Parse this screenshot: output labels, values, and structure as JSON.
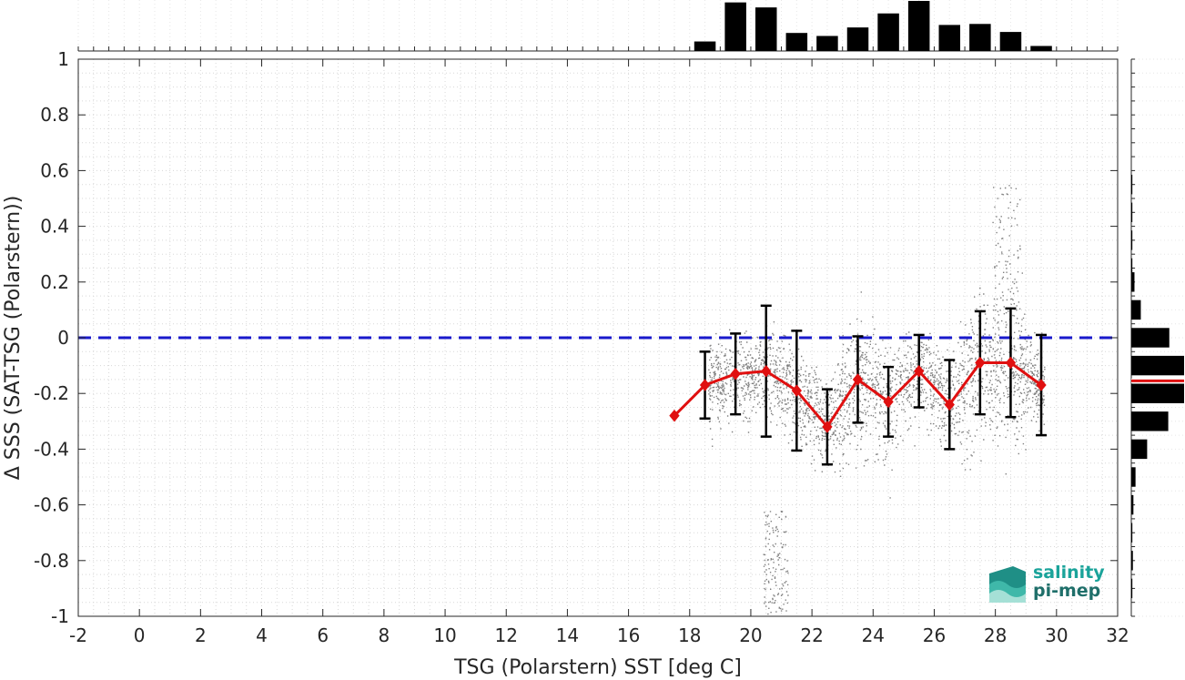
{
  "chart_data": {
    "type": "scatter",
    "title": "",
    "xlabel": "TSG (Polarstern) SST [deg C]",
    "ylabel": "Δ SSS (SAT-TSG (Polarstern))",
    "xlim": [
      -2,
      32
    ],
    "ylim": [
      -1,
      1
    ],
    "xticks": [
      -2,
      0,
      2,
      4,
      6,
      8,
      10,
      12,
      14,
      16,
      18,
      20,
      22,
      24,
      26,
      28,
      30,
      32
    ],
    "yticks": [
      -1,
      -0.8,
      -0.6,
      -0.4,
      -0.2,
      0,
      0.2,
      0.4,
      0.6,
      0.8,
      1
    ],
    "xtick_labels": [
      "-2",
      "0",
      "2",
      "4",
      "6",
      "8",
      "10",
      "12",
      "14",
      "16",
      "18",
      "20",
      "22",
      "24",
      "26",
      "28",
      "30",
      "32"
    ],
    "ytick_labels": [
      "-1",
      "-0.8",
      "-0.6",
      "-0.4",
      "-0.2",
      "0",
      "0.2",
      "0.4",
      "0.6",
      "0.8",
      "1"
    ],
    "grid": true,
    "zero_line": {
      "y": 0,
      "color": "#1a1acc",
      "style": "dashed"
    },
    "scatter_color": "#808080",
    "binned_series": {
      "color": "#e01010",
      "x": [
        17.5,
        18.5,
        19.5,
        20.5,
        21.5,
        22.5,
        23.5,
        24.5,
        25.5,
        26.5,
        27.5,
        28.5,
        29.5
      ],
      "mean": [
        -0.28,
        -0.17,
        -0.13,
        -0.12,
        -0.19,
        -0.32,
        -0.15,
        -0.23,
        -0.12,
        -0.24,
        -0.09,
        -0.09,
        -0.17
      ],
      "std": [
        0.0,
        0.12,
        0.145,
        0.235,
        0.215,
        0.135,
        0.155,
        0.125,
        0.13,
        0.16,
        0.185,
        0.195,
        0.18
      ]
    },
    "sst_histogram": {
      "bin_centers": [
        18.5,
        19.5,
        20.5,
        21.5,
        22.5,
        23.5,
        24.5,
        25.5,
        26.5,
        27.5,
        28.5,
        29.5
      ],
      "heights": [
        0.19,
        0.97,
        0.87,
        0.36,
        0.3,
        0.47,
        0.75,
        1.0,
        0.52,
        0.54,
        0.38,
        0.1
      ]
    },
    "dsss_histogram": {
      "bin_centers": [
        0.55,
        0.45,
        0.35,
        0.25,
        0.2,
        0.1,
        0.0,
        -0.1,
        -0.2,
        -0.3,
        -0.4,
        -0.5,
        -0.6,
        -0.7,
        -0.8,
        -0.9
      ],
      "widths": [
        0.02,
        0.02,
        0.02,
        0.02,
        0.06,
        0.18,
        0.72,
        1.0,
        1.0,
        0.7,
        0.3,
        0.08,
        0.04,
        0.02,
        0.03,
        0.02
      ],
      "median_line": {
        "y": -0.155,
        "color": "#e01010"
      }
    }
  },
  "logo": {
    "line1": "salinity",
    "line2": "pi-mep"
  }
}
